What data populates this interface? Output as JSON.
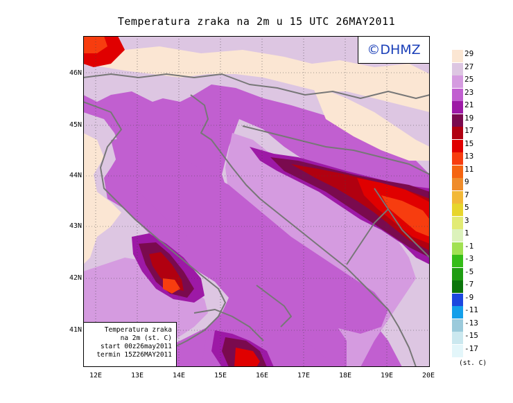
{
  "title": "Temperatura zraka na 2m u 15 UTC 26MAY2011",
  "copyright": "©DHMZ",
  "info_box": {
    "line1": "Temperatura zraka",
    "line2": "na 2m (st. C)",
    "line3": "start 00z26may2011",
    "line4": "termin 15Z26MAY2011"
  },
  "latitude_labels": [
    "46N",
    "45N",
    "44N",
    "43N",
    "42N",
    "41N"
  ],
  "longitude_labels": [
    "12E",
    "13E",
    "14E",
    "15E",
    "16E",
    "17E",
    "18E",
    "19E",
    "20E"
  ],
  "legend": {
    "unit": "(st. C)",
    "labels": [
      "29",
      "27",
      "25",
      "23",
      "21",
      "19",
      "17",
      "15",
      "13",
      "11",
      "9",
      "7",
      "5",
      "3",
      "1",
      "-1",
      "-3",
      "-5",
      "-7",
      "-9",
      "-11",
      "-13",
      "-15",
      "-17"
    ],
    "colors": [
      "#fbe6d3",
      "#ddc6e2",
      "#d59be0",
      "#c15fd0",
      "#9d19a6",
      "#7a0a4e",
      "#b10010",
      "#e00000",
      "#f73d0f",
      "#f56411",
      "#ef8c2b",
      "#f2b838",
      "#e7d52c",
      "#e2eb74",
      "#dcf2bb",
      "#a1e152",
      "#35bd18",
      "#1f9d12",
      "#0b750b",
      "#1c47df",
      "#149fea",
      "#9bcadb",
      "#cbe8ef",
      "#e3f6fa"
    ]
  },
  "map_colors": {
    "t29": "#fbe6d3",
    "t27": "#ddc6e2",
    "t25": "#d59be0",
    "t23": "#c15fd0",
    "t21": "#9d19a6",
    "t19": "#7a0a4e",
    "t17": "#b10010",
    "t15": "#e00000",
    "t13": "#f73d0f",
    "coast": "#777777"
  }
}
